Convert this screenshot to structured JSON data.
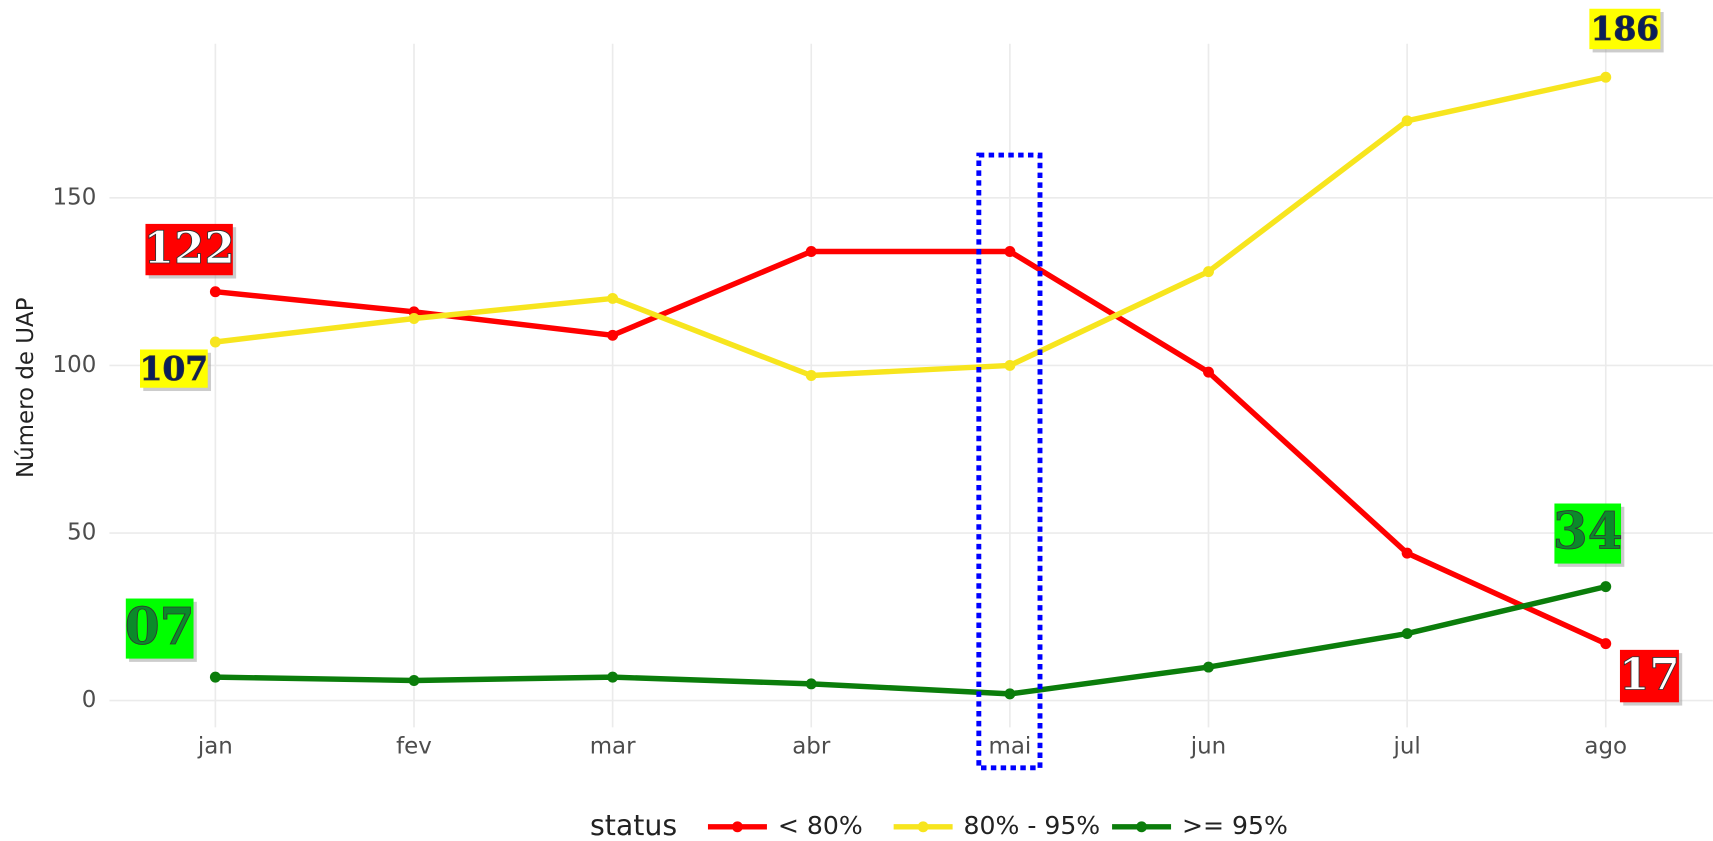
{
  "chart_data": {
    "type": "line",
    "y_label": "Número de UAP",
    "categories": [
      "jan",
      "fev",
      "mar",
      "abr",
      "mai",
      "jun",
      "jul",
      "ago"
    ],
    "series": [
      {
        "name": "< 80%",
        "color": "#ff0000",
        "values": [
          122,
          116,
          109,
          134,
          134,
          98,
          44,
          17
        ],
        "value_labels": [
          "122",
          null,
          null,
          null,
          null,
          null,
          null,
          "17"
        ]
      },
      {
        "name": "80% - 95%",
        "color": "#f7e51e",
        "values": [
          107,
          114,
          120,
          97,
          100,
          128,
          173,
          186
        ],
        "value_labels": [
          "107",
          null,
          null,
          null,
          null,
          null,
          null,
          "186"
        ]
      },
      {
        "name": ">= 95%",
        "color": "#0b7d0b",
        "values": [
          7,
          6,
          7,
          5,
          2,
          10,
          20,
          34
        ],
        "value_labels": [
          "07",
          null,
          null,
          null,
          null,
          null,
          null,
          "34"
        ]
      }
    ],
    "legend_title": "status",
    "ylim": [
      -8,
      196
    ],
    "yticks": [
      0,
      50,
      100,
      150
    ],
    "grid": true,
    "legend": "bottom"
  }
}
